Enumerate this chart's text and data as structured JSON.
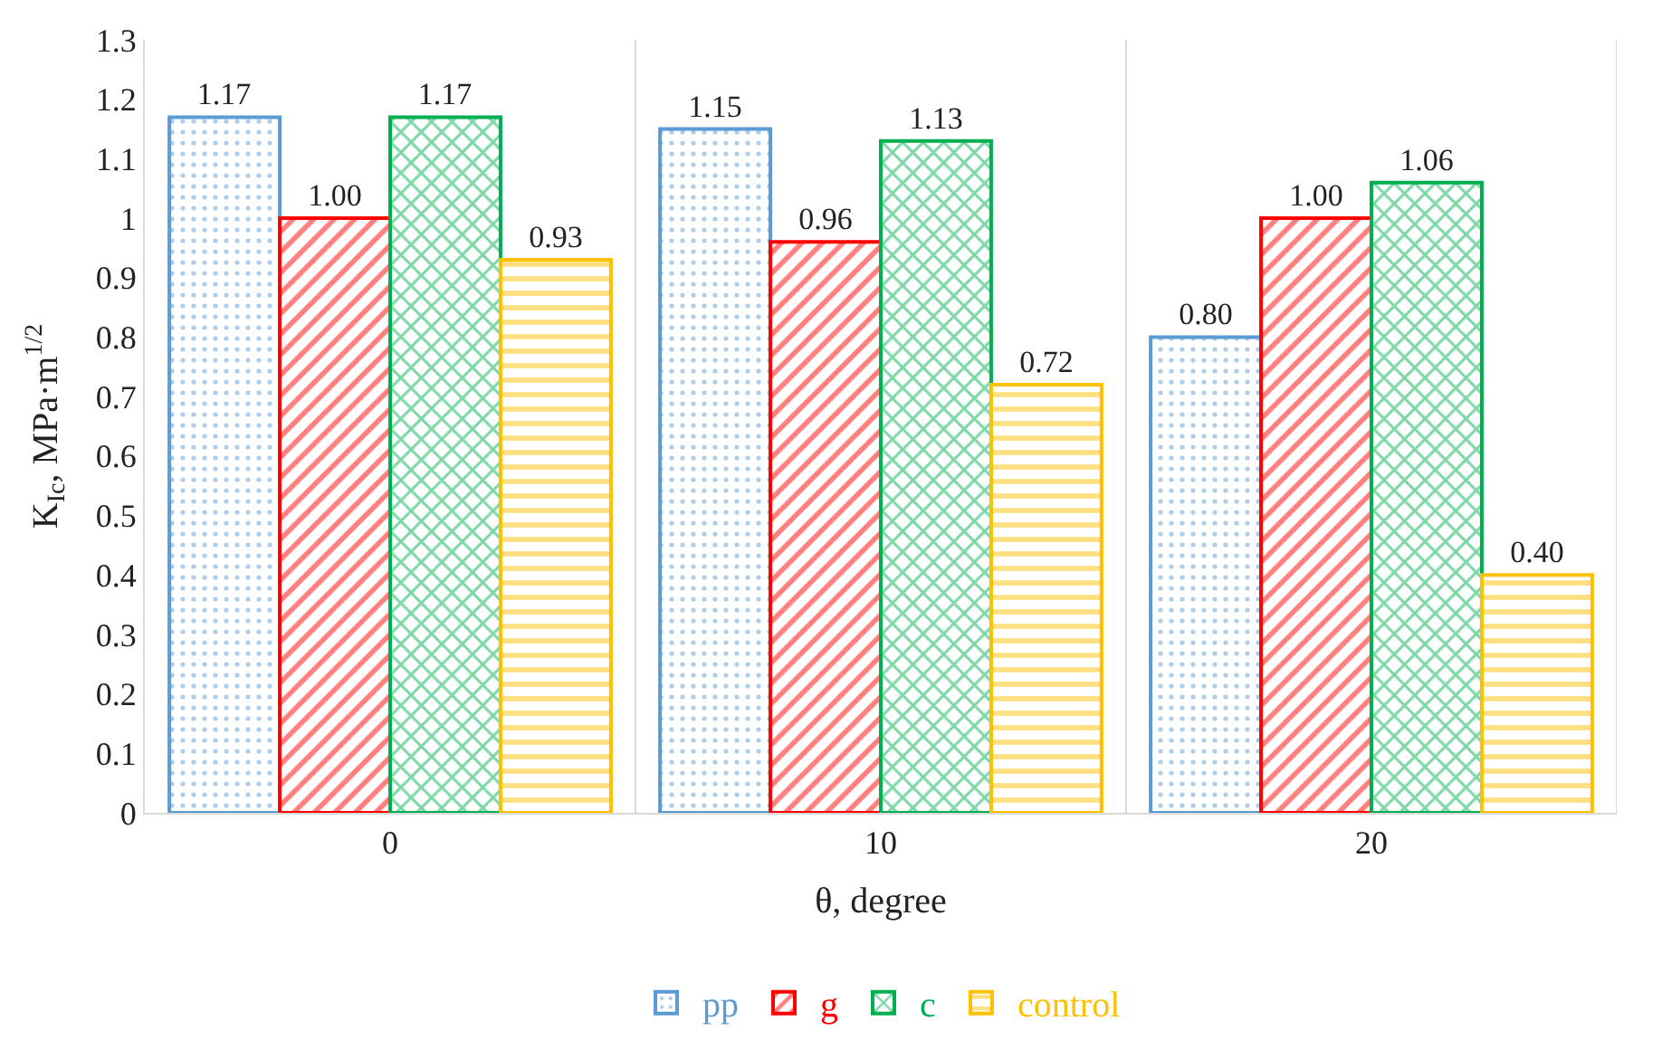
{
  "chart_data": {
    "type": "bar",
    "xlabel": "θ, degree",
    "ylabel": "K$_{Ic}$, MPa·m$^{1/2}$",
    "categories": [
      "0",
      "10",
      "20"
    ],
    "series": [
      {
        "name": "pp",
        "color": "#5b9bd5",
        "values": [
          1.17,
          1.15,
          0.8
        ],
        "value_labels": [
          "1.17",
          "1.15",
          "0.80"
        ]
      },
      {
        "name": "g",
        "color": "#ff0000",
        "values": [
          1.0,
          0.96,
          1.0
        ],
        "value_labels": [
          "1.00",
          "0.96",
          "1.00"
        ]
      },
      {
        "name": "c",
        "color": "#00b050",
        "values": [
          1.17,
          1.13,
          1.06
        ],
        "value_labels": [
          "1.17",
          "1.13",
          "1.06"
        ]
      },
      {
        "name": "control",
        "color": "#ffc000",
        "values": [
          0.93,
          0.72,
          0.4
        ],
        "value_labels": [
          "0.93",
          "0.72",
          "0.40"
        ]
      }
    ],
    "ylim": [
      0,
      1.3
    ],
    "yticks": [
      0,
      0.1,
      0.2,
      0.3,
      0.4,
      0.5,
      0.6,
      0.7,
      0.8,
      0.9,
      1,
      1.1,
      1.2,
      1.3
    ],
    "grid": "x",
    "legend": "bottom"
  }
}
